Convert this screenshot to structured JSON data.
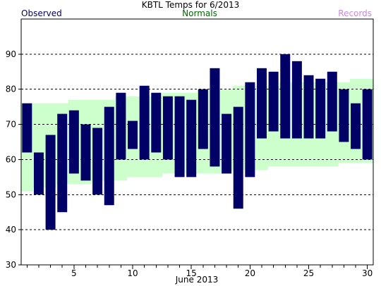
{
  "chart_data": {
    "type": "bar",
    "title": "KBTL Temps for 6/2013",
    "xlabel": "June 2013",
    "ylabel": "",
    "legend": {
      "observed": "Observed",
      "normals": "Normals",
      "records": "Records"
    },
    "colors": {
      "observed": "#000066",
      "normals_fill": "#ccffcc",
      "normals_text": "#006600",
      "records_text": "#cc88dd",
      "grid": "#000000"
    },
    "xlim": [
      0.5,
      30.5
    ],
    "ylim": [
      30,
      100
    ],
    "x_ticks": [
      5,
      10,
      15,
      20,
      25,
      30
    ],
    "y_ticks": [
      30,
      40,
      50,
      60,
      70,
      80,
      90
    ],
    "grid": "horizontal dashed",
    "days": [
      1,
      2,
      3,
      4,
      5,
      6,
      7,
      8,
      9,
      10,
      11,
      12,
      13,
      14,
      15,
      16,
      17,
      18,
      19,
      20,
      21,
      22,
      23,
      24,
      25,
      26,
      27,
      28,
      29,
      30
    ],
    "observed_high": [
      76,
      62,
      67,
      73,
      74,
      70,
      69,
      75,
      79,
      71,
      81,
      79,
      78,
      78,
      77,
      80,
      86,
      73,
      75,
      82,
      86,
      85,
      90,
      88,
      84,
      83,
      85,
      80,
      76,
      80
    ],
    "observed_low": [
      62,
      50,
      40,
      45,
      56,
      54,
      50,
      47,
      60,
      63,
      60,
      62,
      60,
      55,
      55,
      63,
      58,
      56,
      46,
      55,
      66,
      68,
      66,
      66,
      66,
      66,
      68,
      65,
      63,
      60
    ],
    "normal_high": [
      76,
      76,
      76,
      76,
      77,
      77,
      77,
      77,
      78,
      78,
      78,
      78,
      79,
      79,
      79,
      80,
      80,
      80,
      81,
      81,
      81,
      81,
      82,
      82,
      82,
      82,
      82,
      82,
      83,
      83
    ],
    "normal_low": [
      51,
      52,
      52,
      53,
      53,
      53,
      54,
      54,
      54,
      55,
      55,
      55,
      56,
      56,
      56,
      56,
      56,
      57,
      57,
      57,
      57,
      58,
      58,
      58,
      58,
      58,
      58,
      59,
      59,
      59
    ]
  }
}
